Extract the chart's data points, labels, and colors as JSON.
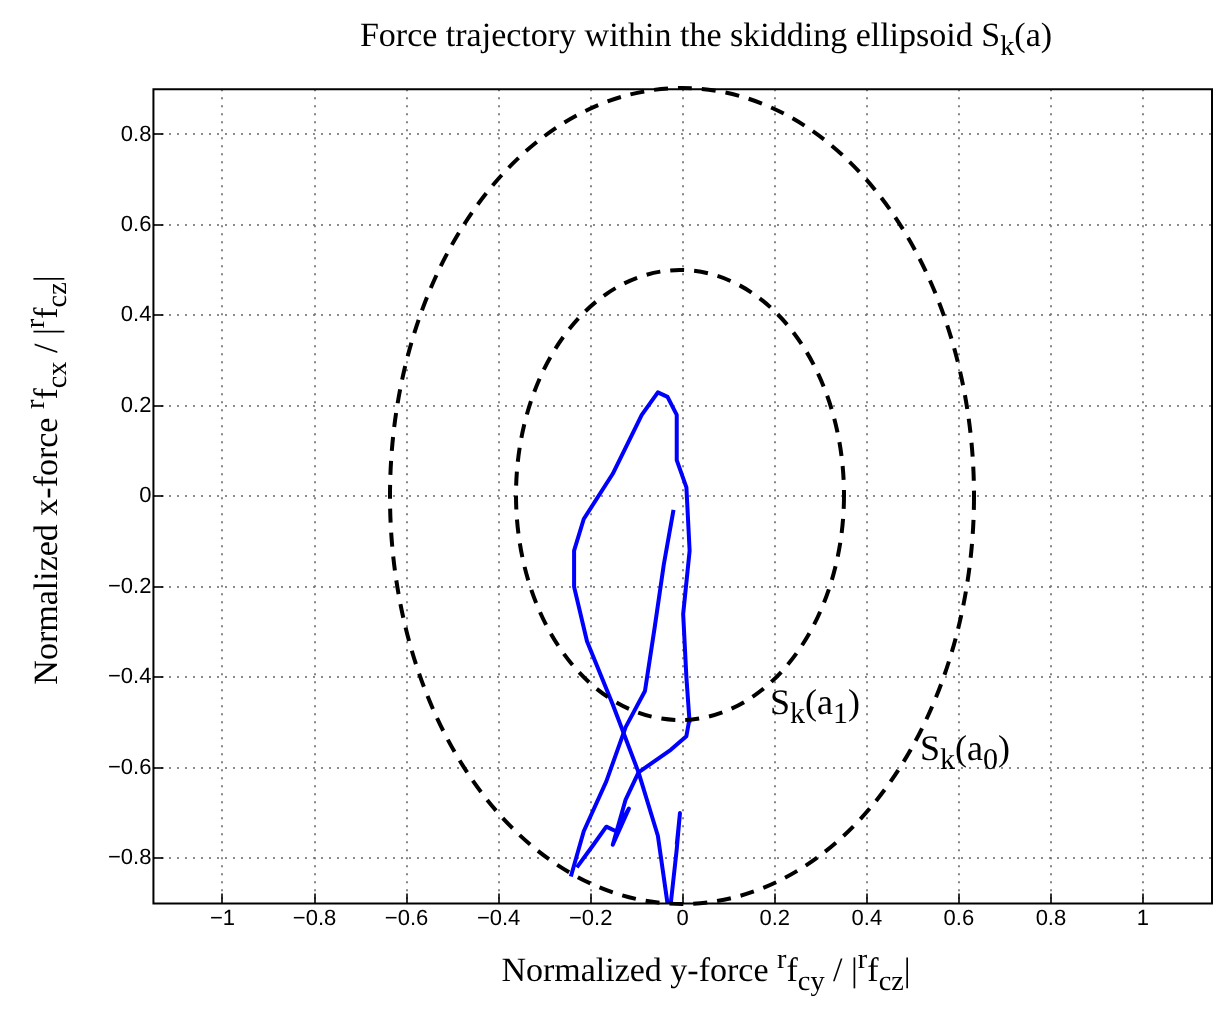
{
  "chart_data": {
    "type": "line",
    "title": "Force trajectory within the skidding ellipsoid S$_{k}$(a)",
    "xlabel": "Normalized y-force $^{r}$f$_{cy}$ / |$^{r}$f$_{cz}$|",
    "ylabel": "Normalized x-force $^{r}$f$_{cx}$ / |$^{r}$f$_{cz}$|",
    "xlim": [
      -1.15,
      1.15
    ],
    "ylim": [
      -0.9,
      0.9
    ],
    "xticks": [
      -1,
      -0.8,
      -0.6,
      -0.4,
      -0.2,
      0,
      0.2,
      0.4,
      0.6,
      0.8,
      1
    ],
    "yticks": [
      -0.8,
      -0.6,
      -0.4,
      -0.2,
      0,
      0.2,
      0.4,
      0.6,
      0.8
    ],
    "grid": true,
    "legend": false,
    "marker": "none",
    "annotations": [
      "S$_{k}$(a$_{1}$)",
      "S$_{k}$(a$_{0}$)"
    ],
    "series": [
      {
        "type": "line",
        "line_style": "solid",
        "color": "#0000ff",
        "x": [
          0.015,
          0.008,
          0.001,
          0.015,
          0.008,
          -0.013,
          -0.013,
          -0.033,
          -0.054,
          -0.089,
          -0.152,
          -0.215,
          -0.236,
          -0.236,
          -0.208,
          -0.152,
          -0.096,
          -0.054,
          -0.033
        ],
        "values": [
          -0.5,
          -0.4,
          -0.26,
          -0.12,
          0.02,
          0.08,
          0.18,
          0.22,
          0.23,
          0.18,
          0.05,
          -0.05,
          -0.12,
          -0.2,
          -0.32,
          -0.46,
          -0.61,
          -0.75,
          -0.9
        ]
      },
      {
        "type": "line",
        "line_style": "solid",
        "color": "#0000ff",
        "x": [
          -0.02,
          -0.041,
          -0.061,
          -0.082,
          -0.124,
          -0.166,
          -0.215,
          -0.243
        ],
        "values": [
          -0.03,
          -0.15,
          -0.29,
          -0.43,
          -0.51,
          -0.63,
          -0.74,
          -0.84
        ]
      },
      {
        "type": "line",
        "line_style": "solid",
        "color": "#0000ff",
        "x": [
          0.015,
          0.008,
          -0.026,
          -0.096,
          -0.124,
          -0.152,
          -0.117,
          -0.145,
          -0.166,
          -0.194,
          -0.23
        ],
        "values": [
          -0.49,
          -0.53,
          -0.56,
          -0.61,
          -0.67,
          -0.77,
          -0.69,
          -0.74,
          -0.73,
          -0.77,
          -0.82
        ]
      },
      {
        "type": "line",
        "line_style": "solid",
        "color": "#0000ff",
        "x": [
          -0.026,
          -0.013,
          -0.006,
          -0.013
        ],
        "values": [
          -0.9,
          -0.78,
          -0.7,
          -0.77
        ]
      }
    ]
  }
}
